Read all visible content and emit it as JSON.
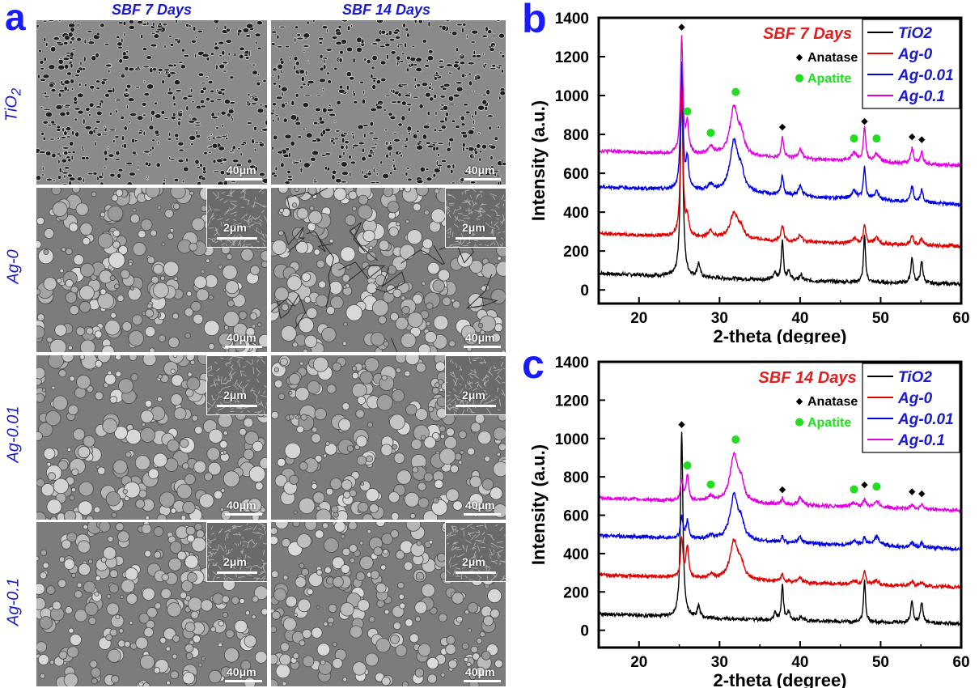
{
  "figure": {
    "panel_a_letter": "a",
    "panel_b_letter": "b",
    "panel_c_letter": "c",
    "column_labels": [
      "SBF 7 Days",
      "SBF 14 Days"
    ],
    "row_labels": [
      "TiO",
      "Ag-0",
      "Ag-0.01",
      "Ag-0.1"
    ],
    "row_label_tio2_subscript": "2",
    "main_scale_label": "40μm",
    "inset_scale_label": "2μm"
  },
  "colors": {
    "TiO2": "#000000",
    "Ag-0": "#e00000",
    "Ag-0.01": "#0000e0",
    "Ag-0.1": "#e000e0",
    "anatase_marker": "#000000",
    "apatite_marker": "#22dd22",
    "condition_label": "#e02020",
    "legend_series_text": "#1a1acc"
  },
  "chart_data": [
    {
      "type": "line",
      "panel": "b",
      "title": "SBF 7 Days",
      "xlabel": "2-theta (degree)",
      "ylabel": "Intensity (a.u.)",
      "xlim": [
        15,
        60
      ],
      "ylim": [
        -70,
        1400
      ],
      "xticks": [
        20,
        30,
        40,
        50,
        60
      ],
      "yticks": [
        0,
        200,
        400,
        600,
        800,
        1000,
        1200,
        1400
      ],
      "legend": {
        "placement": "top-right",
        "entries": [
          "TiO2",
          "Ag-0",
          "Ag-0.01",
          "Ag-0.1"
        ]
      },
      "marker_legend": [
        {
          "symbol": "◆",
          "label": "Anatase"
        },
        {
          "symbol": "●",
          "label": "Apatite"
        }
      ],
      "series": [
        {
          "name": "TiO2",
          "baseline": [
            [
              15,
              85
            ],
            [
              30,
              60
            ],
            [
              45,
              42
            ],
            [
              60,
              30
            ]
          ],
          "peaks": [
            [
              25.3,
              1050,
              0.18
            ],
            [
              27.4,
              70,
              0.2
            ],
            [
              36.9,
              40,
              0.2
            ],
            [
              37.8,
              210,
              0.15
            ],
            [
              38.6,
              50,
              0.2
            ],
            [
              40.1,
              30,
              0.2
            ],
            [
              48.0,
              240,
              0.15
            ],
            [
              53.9,
              130,
              0.18
            ],
            [
              55.1,
              110,
              0.18
            ]
          ]
        },
        {
          "name": "Ag-0",
          "baseline": [
            [
              15,
              290
            ],
            [
              30,
              265
            ],
            [
              45,
              240
            ],
            [
              60,
              225
            ]
          ],
          "peaks": [
            [
              25.3,
              770,
              0.18
            ],
            [
              26.0,
              90,
              0.2
            ],
            [
              28.9,
              30,
              0.4
            ],
            [
              31.8,
              130,
              0.6
            ],
            [
              32.7,
              40,
              0.4
            ],
            [
              37.8,
              80,
              0.18
            ],
            [
              40.0,
              30,
              0.3
            ],
            [
              46.7,
              25,
              0.4
            ],
            [
              48.0,
              100,
              0.18
            ],
            [
              49.5,
              30,
              0.4
            ],
            [
              53.9,
              50,
              0.2
            ],
            [
              55.1,
              40,
              0.2
            ]
          ]
        },
        {
          "name": "Ag-0.01",
          "baseline": [
            [
              15,
              530
            ],
            [
              30,
              505
            ],
            [
              45,
              470
            ],
            [
              60,
              440
            ]
          ],
          "peaks": [
            [
              25.3,
              640,
              0.18
            ],
            [
              26.0,
              150,
              0.2
            ],
            [
              28.9,
              30,
              0.4
            ],
            [
              31.8,
              260,
              0.6
            ],
            [
              32.7,
              80,
              0.4
            ],
            [
              37.8,
              100,
              0.18
            ],
            [
              40.0,
              50,
              0.3
            ],
            [
              46.7,
              40,
              0.4
            ],
            [
              48.0,
              160,
              0.18
            ],
            [
              49.5,
              40,
              0.4
            ],
            [
              53.9,
              80,
              0.2
            ],
            [
              55.1,
              60,
              0.2
            ]
          ]
        },
        {
          "name": "Ag-0.1",
          "baseline": [
            [
              15,
              715
            ],
            [
              30,
              690
            ],
            [
              45,
              665
            ],
            [
              60,
              640
            ]
          ],
          "peaks": [
            [
              25.3,
              600,
              0.18
            ],
            [
              26.0,
              150,
              0.2
            ],
            [
              28.9,
              40,
              0.4
            ],
            [
              31.8,
              250,
              0.6
            ],
            [
              32.7,
              80,
              0.4
            ],
            [
              37.8,
              110,
              0.18
            ],
            [
              40.0,
              50,
              0.3
            ],
            [
              46.7,
              40,
              0.4
            ],
            [
              48.0,
              170,
              0.18
            ],
            [
              49.5,
              40,
              0.4
            ],
            [
              53.9,
              80,
              0.2
            ],
            [
              55.1,
              60,
              0.2
            ]
          ]
        }
      ],
      "annotations": [
        {
          "symbol": "◆",
          "x": 25.3,
          "y": 1340
        },
        {
          "symbol": "●",
          "x": 26.0,
          "y": 905
        },
        {
          "symbol": "●",
          "x": 28.9,
          "y": 795
        },
        {
          "symbol": "●",
          "x": 32.0,
          "y": 1005
        },
        {
          "symbol": "◆",
          "x": 37.8,
          "y": 825
        },
        {
          "symbol": "●",
          "x": 46.7,
          "y": 765
        },
        {
          "symbol": "◆",
          "x": 48.0,
          "y": 855
        },
        {
          "symbol": "●",
          "x": 49.5,
          "y": 765
        },
        {
          "symbol": "◆",
          "x": 53.9,
          "y": 775
        },
        {
          "symbol": "◆",
          "x": 55.1,
          "y": 760
        }
      ]
    },
    {
      "type": "line",
      "panel": "c",
      "title": "SBF 14 Days",
      "xlabel": "2-theta (degree)",
      "ylabel": "Intensity (a.u.)",
      "xlim": [
        15,
        60
      ],
      "ylim": [
        -90,
        1400
      ],
      "xticks": [
        20,
        30,
        40,
        50,
        60
      ],
      "yticks": [
        0,
        200,
        400,
        600,
        800,
        1000,
        1200,
        1400
      ],
      "legend": {
        "placement": "top-right",
        "entries": [
          "TiO2",
          "Ag-0",
          "Ag-0.01",
          "Ag-0.1"
        ]
      },
      "marker_legend": [
        {
          "symbol": "◆",
          "label": "Anatase"
        },
        {
          "symbol": "●",
          "label": "Apatite"
        }
      ],
      "series": [
        {
          "name": "TiO2",
          "baseline": [
            [
              15,
              85
            ],
            [
              30,
              60
            ],
            [
              45,
              45
            ],
            [
              60,
              35
            ]
          ],
          "peaks": [
            [
              25.3,
              960,
              0.18
            ],
            [
              27.4,
              60,
              0.2
            ],
            [
              36.9,
              40,
              0.2
            ],
            [
              37.8,
              185,
              0.15
            ],
            [
              38.6,
              40,
              0.2
            ],
            [
              40.1,
              25,
              0.2
            ],
            [
              48.0,
              215,
              0.15
            ],
            [
              53.9,
              115,
              0.18
            ],
            [
              55.1,
              105,
              0.18
            ]
          ]
        },
        {
          "name": "Ag-0",
          "baseline": [
            [
              15,
              290
            ],
            [
              30,
              265
            ],
            [
              45,
              240
            ],
            [
              60,
              225
            ]
          ],
          "peaks": [
            [
              25.3,
              200,
              0.18
            ],
            [
              26.0,
              160,
              0.2
            ],
            [
              28.9,
              20,
              0.4
            ],
            [
              31.8,
              200,
              0.6
            ],
            [
              32.7,
              60,
              0.4
            ],
            [
              37.8,
              40,
              0.18
            ],
            [
              40.0,
              25,
              0.3
            ],
            [
              46.7,
              20,
              0.4
            ],
            [
              48.0,
              70,
              0.18
            ],
            [
              49.5,
              20,
              0.4
            ],
            [
              53.9,
              30,
              0.2
            ],
            [
              55.1,
              25,
              0.2
            ]
          ]
        },
        {
          "name": "Ag-0.01",
          "baseline": [
            [
              15,
              495
            ],
            [
              30,
              470
            ],
            [
              45,
              445
            ],
            [
              60,
              425
            ]
          ],
          "peaks": [
            [
              25.3,
              110,
              0.18
            ],
            [
              26.0,
              90,
              0.2
            ],
            [
              28.9,
              20,
              0.4
            ],
            [
              31.8,
              230,
              0.6
            ],
            [
              32.7,
              70,
              0.4
            ],
            [
              37.8,
              30,
              0.18
            ],
            [
              40.0,
              30,
              0.3
            ],
            [
              46.7,
              20,
              0.4
            ],
            [
              48.0,
              40,
              0.18
            ],
            [
              49.5,
              45,
              0.5
            ],
            [
              53.9,
              25,
              0.2
            ],
            [
              55.1,
              25,
              0.2
            ]
          ]
        },
        {
          "name": "Ag-0.1",
          "baseline": [
            [
              15,
              690
            ],
            [
              30,
              665
            ],
            [
              45,
              645
            ],
            [
              60,
              625
            ]
          ],
          "peaks": [
            [
              25.3,
              110,
              0.18
            ],
            [
              26.0,
              130,
              0.2
            ],
            [
              28.9,
              30,
              0.4
            ],
            [
              31.8,
              250,
              0.6
            ],
            [
              32.7,
              80,
              0.4
            ],
            [
              37.8,
              30,
              0.18
            ],
            [
              40.0,
              40,
              0.3
            ],
            [
              46.7,
              20,
              0.4
            ],
            [
              48.0,
              40,
              0.18
            ],
            [
              49.5,
              30,
              0.5
            ],
            [
              53.9,
              25,
              0.2
            ],
            [
              55.1,
              25,
              0.2
            ]
          ]
        }
      ],
      "annotations": [
        {
          "symbol": "◆",
          "x": 25.3,
          "y": 1060
        },
        {
          "symbol": "●",
          "x": 26.0,
          "y": 845
        },
        {
          "symbol": "●",
          "x": 28.9,
          "y": 745
        },
        {
          "symbol": "●",
          "x": 32.0,
          "y": 980
        },
        {
          "symbol": "◆",
          "x": 37.8,
          "y": 720
        },
        {
          "symbol": "●",
          "x": 46.7,
          "y": 720
        },
        {
          "symbol": "◆",
          "x": 48.0,
          "y": 745
        },
        {
          "symbol": "●",
          "x": 49.5,
          "y": 735
        },
        {
          "symbol": "◆",
          "x": 53.9,
          "y": 710
        },
        {
          "symbol": "◆",
          "x": 55.1,
          "y": 700
        }
      ]
    }
  ]
}
